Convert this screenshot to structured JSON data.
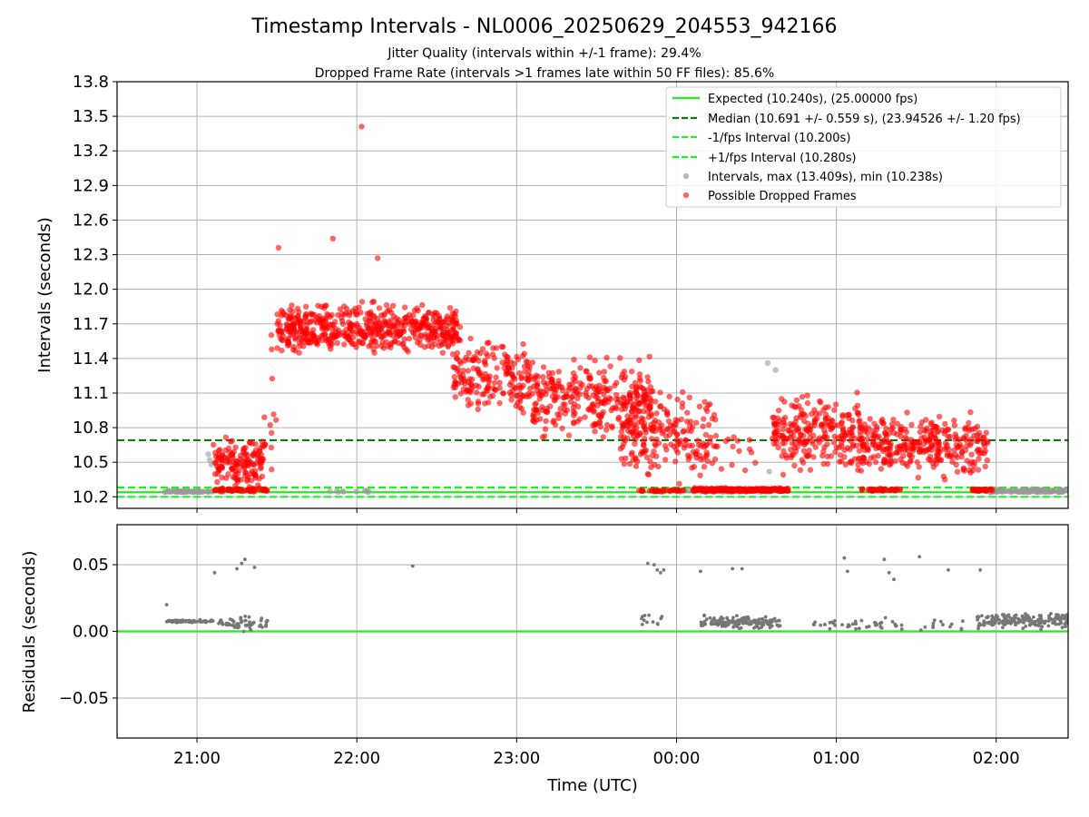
{
  "chart_data": [
    {
      "type": "scatter",
      "title": "Timestamp Intervals - NL0006_20250629_204553_942166",
      "subtitles": [
        "Jitter Quality (intervals within +/-1 frame): 29.4%",
        "Dropped Frame Rate (intervals >1 frames late within 50 FF files): 85.6%"
      ],
      "ylabel": "Intervals (seconds)",
      "ylim": [
        10.1,
        13.8
      ],
      "yticks": [
        "10.2",
        "10.5",
        "10.8",
        "11.1",
        "11.4",
        "11.7",
        "12.0",
        "12.3",
        "12.6",
        "12.9",
        "13.2",
        "13.5",
        "13.8"
      ],
      "grid": true,
      "legend_position": "top-right",
      "hlines": [
        {
          "name": "Expected (10.240s), (25.00000 fps)",
          "y": 10.24,
          "color": "#22ee22",
          "style": "solid"
        },
        {
          "name": "Median (10.691 +/- 0.559 s), (23.94526 +/- 1.20 fps)",
          "y": 10.691,
          "color": "#117711",
          "style": "dashed"
        },
        {
          "name": "-1/fps Interval (10.200s)",
          "y": 10.2,
          "color": "#22ee22",
          "style": "dashed"
        },
        {
          "name": "+1/fps Interval (10.280s)",
          "y": 10.28,
          "color": "#22ee22",
          "style": "dashed"
        }
      ],
      "series": [
        {
          "name": "Intervals, max (13.409s), min (10.238s)",
          "color": "#999999",
          "segments": [
            {
              "t0": 20.79,
              "t1": 21.1,
              "center": 10.245,
              "spread": 0.01,
              "n": 60
            },
            {
              "t0": 21.82,
              "t1": 22.1,
              "center": 10.248,
              "spread": 0.01,
              "n": 10
            },
            {
              "t0": 24.0,
              "t1": 24.7,
              "center": 10.25,
              "spread": 0.01,
              "n": 30
            },
            {
              "t0": 25.95,
              "t1": 26.45,
              "center": 10.25,
              "spread": 0.02,
              "n": 130
            }
          ],
          "points": [
            [
              21.07,
              10.57
            ],
            [
              21.08,
              10.52
            ],
            [
              21.09,
              10.48
            ],
            [
              24.57,
              11.36
            ],
            [
              24.58,
              10.42
            ],
            [
              24.62,
              11.3
            ]
          ]
        },
        {
          "name": "Possible Dropped Frames",
          "color": "#ff0000",
          "segments": [
            {
              "t0": 21.1,
              "t1": 21.42,
              "center": 10.5,
              "spread": 0.28,
              "n": 150
            },
            {
              "t0": 21.1,
              "t1": 21.45,
              "center": 10.26,
              "spread": 0.02,
              "n": 60
            },
            {
              "t0": 21.42,
              "t1": 21.5,
              "center": 10.9,
              "spread": 0.9,
              "n": 12
            },
            {
              "t0": 21.5,
              "t1": 22.65,
              "center": 11.65,
              "spread": 0.28,
              "n": 560
            },
            {
              "t0": 22.6,
              "t1": 23.1,
              "center": 11.25,
              "spread": 0.45,
              "n": 190
            },
            {
              "t0": 23.1,
              "t1": 23.85,
              "center": 11.05,
              "spread": 0.45,
              "n": 310
            },
            {
              "t0": 23.65,
              "t1": 24.25,
              "center": 10.75,
              "spread": 0.5,
              "n": 200
            },
            {
              "t0": 23.75,
              "t1": 24.05,
              "center": 10.255,
              "spread": 0.015,
              "n": 40
            },
            {
              "t0": 24.1,
              "t1": 24.7,
              "center": 10.26,
              "spread": 0.02,
              "n": 260
            },
            {
              "t0": 24.15,
              "t1": 24.5,
              "center": 10.6,
              "spread": 0.4,
              "n": 20
            },
            {
              "t0": 24.6,
              "t1": 25.15,
              "center": 10.75,
              "spread": 0.45,
              "n": 240
            },
            {
              "t0": 25.15,
              "t1": 25.95,
              "center": 10.65,
              "spread": 0.35,
              "n": 320
            },
            {
              "t0": 25.15,
              "t1": 25.4,
              "center": 10.26,
              "spread": 0.015,
              "n": 40
            },
            {
              "t0": 25.85,
              "t1": 25.98,
              "center": 10.26,
              "spread": 0.015,
              "n": 40
            }
          ],
          "points": [
            [
              22.03,
              13.41
            ],
            [
              21.85,
              12.44
            ],
            [
              21.51,
              12.36
            ],
            [
              22.13,
              12.27
            ]
          ]
        }
      ]
    },
    {
      "type": "scatter",
      "xlabel": "Time (UTC)",
      "ylabel": "Residuals (seconds)",
      "ylim": [
        -0.08,
        0.08
      ],
      "yticks": [
        "0.05",
        "0.00",
        "−0.05"
      ],
      "xticks": [
        "21:00",
        "22:00",
        "23:00",
        "00:00",
        "01:00",
        "02:00"
      ],
      "grid": true,
      "hline": {
        "y": 0.0,
        "color": "#22ee22"
      },
      "series": [
        {
          "name": "",
          "color": "#777777",
          "segments": [
            {
              "t0": 20.81,
              "t1": 21.1,
              "center": 0.0075,
              "spread": 0.0015,
              "n": 70
            },
            {
              "t0": 21.12,
              "t1": 21.45,
              "center": 0.006,
              "spread": 0.007,
              "n": 60
            },
            {
              "t0": 23.78,
              "t1": 23.92,
              "center": 0.008,
              "spread": 0.007,
              "n": 12
            },
            {
              "t0": 24.15,
              "t1": 24.65,
              "center": 0.007,
              "spread": 0.006,
              "n": 160
            },
            {
              "t0": 24.85,
              "t1": 25.3,
              "center": 0.005,
              "spread": 0.007,
              "n": 35
            },
            {
              "t0": 25.3,
              "t1": 25.85,
              "center": 0.005,
              "spread": 0.006,
              "n": 20
            },
            {
              "t0": 25.88,
              "t1": 26.45,
              "center": 0.008,
              "spread": 0.007,
              "n": 180
            }
          ],
          "points": [
            [
              20.81,
              0.02
            ],
            [
              21.11,
              0.044
            ],
            [
              21.25,
              0.047
            ],
            [
              21.28,
              0.051
            ],
            [
              21.3,
              0.054
            ],
            [
              21.36,
              0.048
            ],
            [
              22.35,
              0.049
            ],
            [
              23.82,
              0.051
            ],
            [
              23.86,
              0.05
            ],
            [
              23.88,
              0.046
            ],
            [
              23.9,
              0.044
            ],
            [
              23.92,
              0.046
            ],
            [
              24.15,
              0.045
            ],
            [
              24.35,
              0.047
            ],
            [
              24.41,
              0.047
            ],
            [
              25.05,
              0.055
            ],
            [
              25.07,
              0.045
            ],
            [
              25.3,
              0.054
            ],
            [
              25.33,
              0.044
            ],
            [
              25.36,
              0.039
            ],
            [
              25.52,
              0.056
            ],
            [
              25.7,
              0.046
            ],
            [
              25.9,
              0.046
            ]
          ]
        }
      ]
    }
  ]
}
